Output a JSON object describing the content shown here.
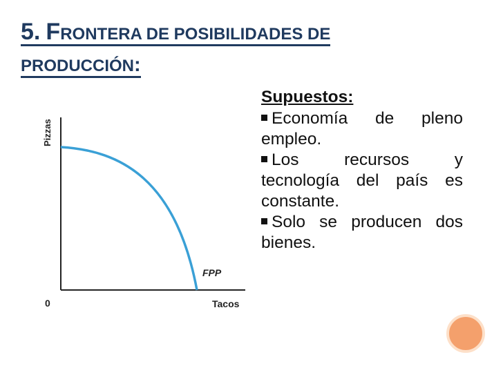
{
  "title": {
    "number": "5.",
    "line1_first_big": "F",
    "line1_rest": "RONTERA DE POSIBILIDADES DE",
    "line2": "PRODUCCIÓN",
    "colon": ":"
  },
  "chart": {
    "y_label": "Pizzas",
    "x_label": "Tacos",
    "origin_label": "0",
    "curve_label": "FPP",
    "colors": {
      "curve": "#3aa0d6",
      "axes": "#222222"
    }
  },
  "assumptions": {
    "heading": "Supuestos:",
    "items": [
      {
        "text": "Economía de pleno empleo."
      },
      {
        "text": "Los recursos y tecnología del país es constante."
      },
      {
        "text": "Solo se producen dos bienes."
      }
    ]
  },
  "decor": {
    "accent_color": "#f4a06c"
  }
}
